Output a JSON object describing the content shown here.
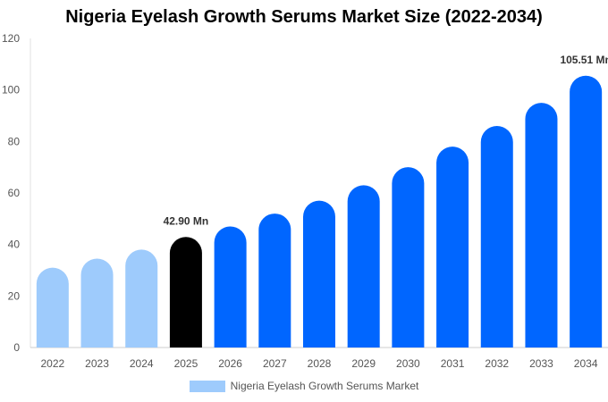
{
  "chart_data": {
    "type": "bar",
    "title": "Nigeria Eyelash Growth Serums Market Size (2022-2034)",
    "categories": [
      "2022",
      "2023",
      "2024",
      "2025",
      "2026",
      "2027",
      "2028",
      "2029",
      "2030",
      "2031",
      "2032",
      "2033",
      "2034"
    ],
    "series": [
      {
        "name": "Nigeria Eyelash Growth Serums Market",
        "values": [
          31.0,
          34.5,
          38.0,
          42.9,
          47.0,
          52.0,
          57.0,
          63.0,
          70.0,
          78.0,
          86.0,
          95.0,
          105.51
        ]
      }
    ],
    "ylim": [
      0,
      120
    ],
    "yticks": [
      0,
      20,
      40,
      60,
      80,
      100,
      120
    ],
    "grid": false,
    "legend_position": "bottom",
    "annotations": [
      {
        "category": "2025",
        "text": "42.90 Mn"
      },
      {
        "category": "2034",
        "text": "105.51 Mn"
      }
    ],
    "colors": {
      "historical": "#9ecbfc",
      "current": "#000000",
      "forecast": "#0066ff",
      "legend": "#9ecbfc"
    },
    "segments": [
      "historical",
      "historical",
      "historical",
      "current",
      "forecast",
      "forecast",
      "forecast",
      "forecast",
      "forecast",
      "forecast",
      "forecast",
      "forecast",
      "forecast"
    ]
  }
}
